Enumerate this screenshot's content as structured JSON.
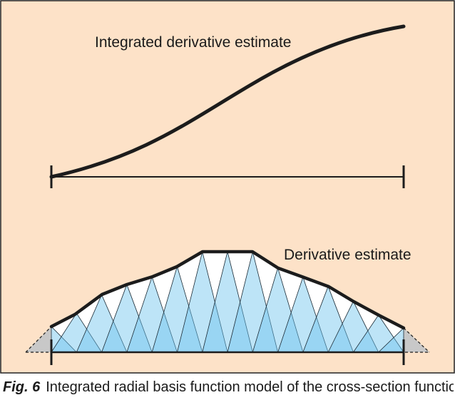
{
  "figure": {
    "upper_label": "Integrated derivative estimate",
    "lower_label": "Derivative estimate",
    "colors": {
      "background": "#fde2c8",
      "frame": "#222222",
      "curve": "#1c1c1c",
      "tri_white": "#ffffff",
      "tri_light": "#9fd6f3",
      "tri_mid": "#6cc4ee",
      "tri_dark": "#3fb2e8",
      "grey_end": "#c8c8c8"
    }
  },
  "caption": {
    "tag": "Fig. 6",
    "text": "Integrated radial basis function model of the cross-section function"
  }
}
